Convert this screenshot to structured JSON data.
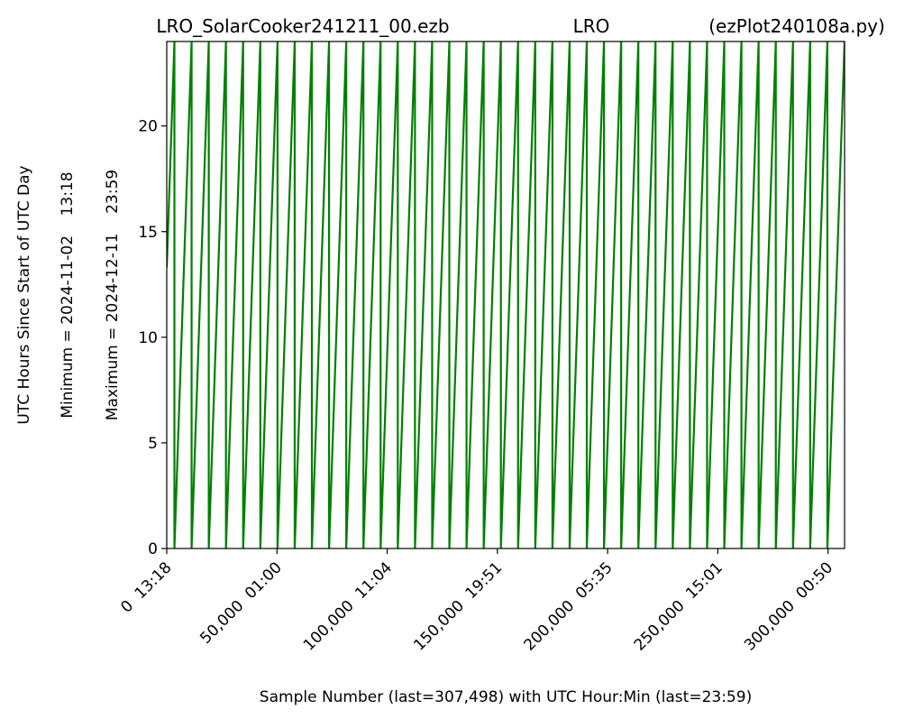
{
  "chart_data": {
    "type": "line",
    "title": [
      "LRO_SolarCooker241211_00.ezb",
      "LRO",
      "(ezPlot240108a.py)"
    ],
    "xlabel": "Sample Number (last=307,498) with UTC Hour:Min (last=23:59)",
    "ylabel": [
      "UTC Hours Since Start of UTC Day",
      "Minimum = 2024-11-02    13:18",
      "Maximum = 2024-12-11    23:59"
    ],
    "color": "#008000",
    "x": [
      0,
      3475,
      3476,
      11270,
      11271,
      19065,
      19066,
      26860,
      26861,
      34655,
      34656,
      42450,
      42451,
      50245,
      50246,
      58040,
      58041,
      65835,
      65836,
      73630,
      73631,
      81425,
      81426,
      89220,
      89221,
      97015,
      97016,
      104810,
      104811,
      112605,
      112606,
      120400,
      120401,
      128195,
      128196,
      135990,
      135991,
      143785,
      143786,
      151580,
      151581,
      159375,
      159376,
      167170,
      167171,
      174965,
      174966,
      182760,
      182761,
      190555,
      190556,
      198350,
      198351,
      206145,
      206146,
      213940,
      213941,
      221735,
      221736,
      229530,
      229531,
      237325,
      237326,
      245120,
      245121,
      252915,
      252916,
      260710,
      260711,
      268505,
      268506,
      276300,
      276301,
      284095,
      284096,
      291890,
      291891,
      299685,
      299686,
      307498
    ],
    "values": [
      13.3,
      23.98,
      0,
      23.98,
      0,
      23.98,
      0,
      23.98,
      0,
      23.98,
      0,
      23.98,
      0,
      23.98,
      0,
      23.98,
      0,
      23.98,
      0,
      23.98,
      0,
      23.98,
      0,
      23.98,
      0,
      23.98,
      0,
      23.98,
      0,
      23.98,
      0,
      23.98,
      0,
      23.98,
      0,
      23.98,
      0,
      23.98,
      0,
      23.98,
      0,
      23.98,
      0,
      23.98,
      0,
      23.98,
      0,
      23.98,
      0,
      23.98,
      0,
      23.98,
      0,
      23.98,
      0,
      23.98,
      0,
      23.98,
      0,
      23.98,
      0,
      23.98,
      0,
      23.98,
      0,
      23.98,
      0,
      23.98,
      0,
      23.98,
      0,
      23.98,
      0,
      23.98,
      0,
      23.98,
      0,
      23.98,
      0,
      23.98
    ],
    "xlim": [
      0,
      307498
    ],
    "ylim": [
      0,
      24
    ],
    "xticks": [
      {
        "value": 0,
        "label": "0  13:18"
      },
      {
        "value": 50000,
        "label": "50,000  01:00"
      },
      {
        "value": 100000,
        "label": "100,000  11:04"
      },
      {
        "value": 150000,
        "label": "150,000  19:51"
      },
      {
        "value": 200000,
        "label": "200,000  05:35"
      },
      {
        "value": 250000,
        "label": "250,000  15:01"
      },
      {
        "value": 300000,
        "label": "300,000  00:50"
      }
    ],
    "yticks": [
      0,
      5,
      10,
      15,
      20
    ],
    "grid": false
  }
}
